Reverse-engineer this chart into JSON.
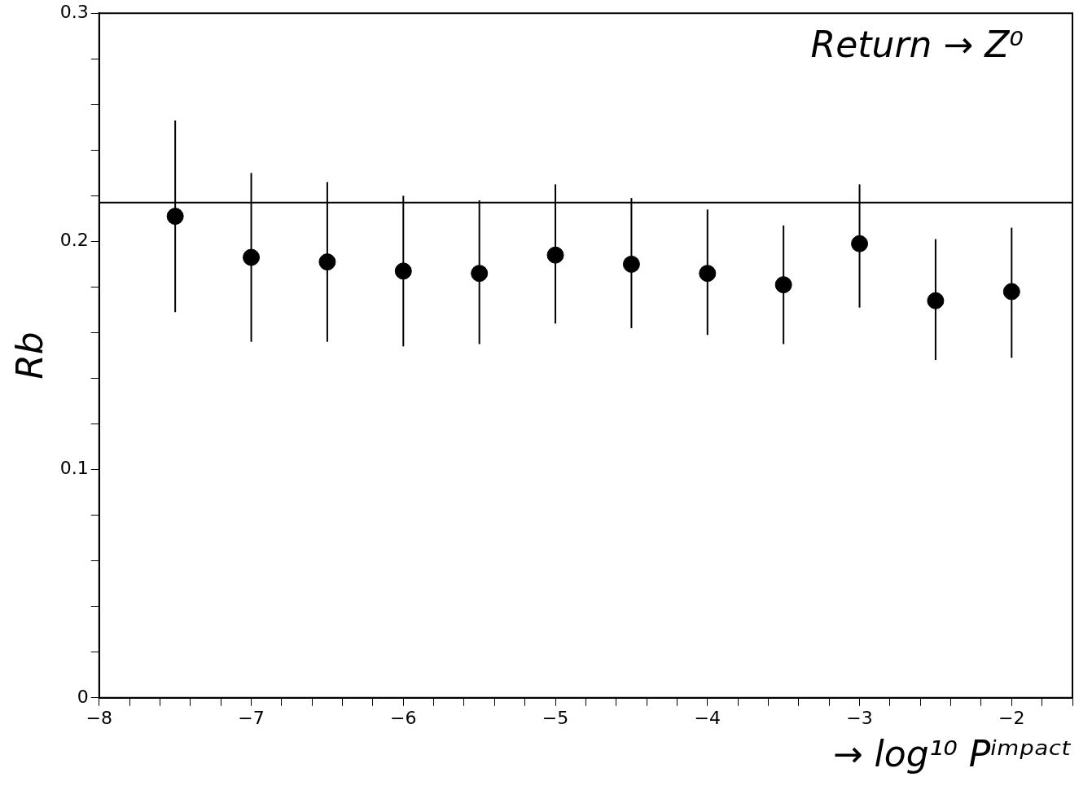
{
  "chart_data": {
    "type": "scatter",
    "xlabel": "→ log¹⁰ Pⁱᵐᵖᵃᶜᵗ",
    "ylabel": "Rb",
    "annotations": [
      "Return → Z⁰"
    ],
    "x": [
      -7.5,
      -7,
      -6.5,
      -6,
      -5.5,
      -5,
      -4.5,
      -4,
      -3.5,
      -3,
      -2.5,
      -2
    ],
    "values": [
      0.211,
      0.193,
      0.191,
      0.187,
      0.186,
      0.194,
      0.19,
      0.186,
      0.181,
      0.199,
      0.174,
      0.178
    ],
    "errors": [
      [
        0.169,
        0.253
      ],
      [
        0.156,
        0.23
      ],
      [
        0.156,
        0.226
      ],
      [
        0.154,
        0.22
      ],
      [
        0.155,
        0.218
      ],
      [
        0.164,
        0.225
      ],
      [
        0.162,
        0.219
      ],
      [
        0.159,
        0.214
      ],
      [
        0.155,
        0.207
      ],
      [
        0.171,
        0.225
      ],
      [
        0.148,
        0.201
      ],
      [
        0.149,
        0.206
      ]
    ],
    "color": "#000000",
    "marker": "circle",
    "xlim": [
      -8,
      -1.6
    ],
    "ylim": [
      0,
      0.3
    ],
    "xticks": [
      -8,
      {
        "value": -7.8,
        "label": null
      },
      {
        "value": -7.6,
        "label": null
      },
      {
        "value": -7.4,
        "label": null
      },
      {
        "value": -7.2,
        "label": null
      },
      -7,
      {
        "value": -6.8,
        "label": null
      },
      {
        "value": -6.6,
        "label": null
      },
      {
        "value": -6.4,
        "label": null
      },
      {
        "value": -6.2,
        "label": null
      },
      -6,
      {
        "value": -5.8,
        "label": null
      },
      {
        "value": -5.6,
        "label": null
      },
      {
        "value": -5.4,
        "label": null
      },
      {
        "value": -5.2,
        "label": null
      },
      -5,
      {
        "value": -4.8,
        "label": null
      },
      {
        "value": -4.6,
        "label": null
      },
      {
        "value": -4.4,
        "label": null
      },
      {
        "value": -4.2,
        "label": null
      },
      -4,
      {
        "value": -3.8,
        "label": null
      },
      {
        "value": -3.6,
        "label": null
      },
      {
        "value": -3.4,
        "label": null
      },
      {
        "value": -3.2,
        "label": null
      },
      -3,
      {
        "value": -2.8,
        "label": null
      },
      {
        "value": -2.6,
        "label": null
      },
      {
        "value": -2.4,
        "label": null
      },
      {
        "value": -2.2,
        "label": null
      },
      -2,
      {
        "value": -1.8,
        "label": null
      },
      {
        "value": -1.6,
        "label": null
      }
    ],
    "yticks": [
      0,
      {
        "value": 0.02,
        "label": null
      },
      {
        "value": 0.04,
        "label": null
      },
      {
        "value": 0.06,
        "label": null
      },
      {
        "value": 0.08,
        "label": null
      },
      0.1,
      {
        "value": 0.12,
        "label": null
      },
      {
        "value": 0.14,
        "label": null
      },
      {
        "value": 0.16,
        "label": null
      },
      {
        "value": 0.18,
        "label": null
      },
      0.2,
      {
        "value": 0.22,
        "label": null
      },
      {
        "value": 0.24,
        "label": null
      },
      {
        "value": 0.26,
        "label": null
      },
      {
        "value": 0.28,
        "label": null
      },
      0.3
    ],
    "ref_lines": [
      {
        "axis": "y",
        "value": 0.217,
        "color": "#000000"
      }
    ]
  }
}
